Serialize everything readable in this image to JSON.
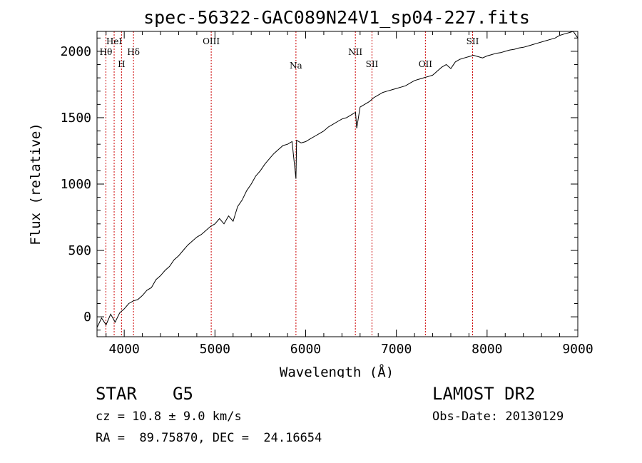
{
  "chart_data": {
    "type": "line",
    "title": "spec-56322-GAC089N24V1_sp04-227.fits",
    "xlabel": "Wavelength (Å)",
    "ylabel": "Flux (relative)",
    "xlim": [
      3700,
      9000
    ],
    "ylim": [
      -150,
      2150
    ],
    "xticks": [
      4000,
      5000,
      6000,
      7000,
      8000,
      9000
    ],
    "yticks": [
      0,
      500,
      1000,
      1500,
      2000
    ],
    "grid": false,
    "series": [
      {
        "x": [
          3700,
          3750,
          3800,
          3850,
          3900,
          3950,
          4000,
          4050,
          4100,
          4150,
          4200,
          4250,
          4300,
          4350,
          4400,
          4450,
          4500,
          4550,
          4600,
          4650,
          4700,
          4750,
          4800,
          4850,
          4900,
          4950,
          5000,
          5050,
          5100,
          5150,
          5200,
          5250,
          5300,
          5350,
          5400,
          5450,
          5500,
          5550,
          5600,
          5650,
          5700,
          5750,
          5800,
          5850,
          5893,
          5900,
          5950,
          6000,
          6050,
          6100,
          6150,
          6200,
          6250,
          6300,
          6350,
          6400,
          6450,
          6500,
          6550,
          6563,
          6600,
          6650,
          6700,
          6750,
          6800,
          6850,
          6900,
          6950,
          7000,
          7050,
          7100,
          7150,
          7200,
          7250,
          7300,
          7350,
          7400,
          7450,
          7500,
          7550,
          7600,
          7650,
          7700,
          7750,
          7800,
          7850,
          7900,
          7950,
          8000,
          8050,
          8100,
          8150,
          8200,
          8250,
          8300,
          8350,
          8400,
          8450,
          8500,
          8550,
          8600,
          8650,
          8700,
          8750,
          8800,
          8850,
          8900,
          8950,
          9000
        ],
        "y": [
          -80,
          -10,
          -60,
          20,
          -40,
          30,
          60,
          100,
          120,
          130,
          160,
          200,
          220,
          280,
          310,
          350,
          380,
          430,
          460,
          500,
          540,
          570,
          600,
          620,
          650,
          680,
          700,
          740,
          700,
          760,
          720,
          830,
          880,
          950,
          1000,
          1060,
          1100,
          1150,
          1190,
          1230,
          1260,
          1290,
          1300,
          1320,
          1040,
          1330,
          1310,
          1320,
          1340,
          1360,
          1380,
          1400,
          1430,
          1450,
          1470,
          1490,
          1500,
          1520,
          1540,
          1420,
          1580,
          1600,
          1620,
          1650,
          1670,
          1690,
          1700,
          1710,
          1720,
          1730,
          1740,
          1760,
          1780,
          1790,
          1800,
          1810,
          1820,
          1850,
          1880,
          1900,
          1870,
          1920,
          1940,
          1950,
          1960,
          1970,
          1960,
          1950,
          1965,
          1975,
          1985,
          1990,
          2000,
          2010,
          2015,
          2025,
          2030,
          2040,
          2050,
          2060,
          2070,
          2080,
          2090,
          2100,
          2120,
          2130,
          2140,
          2150,
          2100
        ]
      }
    ],
    "lines": [
      {
        "label": "Hθ",
        "x": 3798,
        "row": 1,
        "color": "#cc0000"
      },
      {
        "label": "HeI",
        "x": 3889,
        "row": 0,
        "color": "#cc0000"
      },
      {
        "label": "H",
        "x": 3970,
        "row": 2,
        "color": "#cc0000"
      },
      {
        "label": "Hδ",
        "x": 4102,
        "row": 1,
        "color": "#cc0000"
      },
      {
        "label": "OIII",
        "x": 4959,
        "row": 0,
        "color": "#cc0000"
      },
      {
        "label": "Na",
        "x": 5893,
        "row": 3,
        "color": "#cc0000"
      },
      {
        "label": "NII",
        "x": 6548,
        "row": 1,
        "color": "#cc0000"
      },
      {
        "label": "SII",
        "x": 6731,
        "row": 2,
        "color": "#cc0000"
      },
      {
        "label": "OII",
        "x": 7320,
        "row": 2,
        "color": "#cc0000"
      },
      {
        "label": "SII",
        "x": 7840,
        "row": 0,
        "color": "#cc0000"
      }
    ]
  },
  "info": {
    "class": "STAR",
    "subclass": "G5",
    "survey": "LAMOST DR2",
    "cz": "cz = 10.8 ± 9.0 km/s",
    "obs_date": "Obs-Date: 20130129",
    "coords": "RA =  89.75870, DEC =  24.16654"
  }
}
